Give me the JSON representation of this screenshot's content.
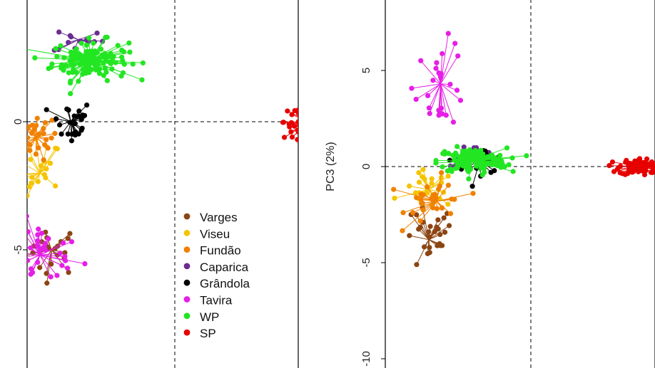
{
  "chart_data": [
    {
      "type": "scatter",
      "title": "",
      "xlabel": "",
      "ylabel": "",
      "yticks": [
        0,
        -5
      ],
      "ytick_labels": [
        "0",
        "-5"
      ],
      "legend_position": "bottom-right",
      "grid": false,
      "reference_lines": {
        "x": 0,
        "y": 0
      },
      "groups": [
        {
          "name": "Varges",
          "color": "#8B4513",
          "centroid": [
            -3.2,
            -5.0
          ]
        },
        {
          "name": "Viseu",
          "color": "#F5C400",
          "centroid": [
            -3.5,
            -2.0
          ]
        },
        {
          "name": "Fundão",
          "color": "#F08000",
          "centroid": [
            -3.6,
            -0.6
          ]
        },
        {
          "name": "Caparica",
          "color": "#6B2C91",
          "centroid": [
            -2.5,
            3.2
          ]
        },
        {
          "name": "Grândola",
          "color": "#000000",
          "centroid": [
            -2.7,
            0.0
          ]
        },
        {
          "name": "Tavira",
          "color": "#E61EE6",
          "centroid": [
            -3.5,
            -5.2
          ]
        },
        {
          "name": "WP",
          "color": "#22E622",
          "centroid": [
            -2.2,
            2.4
          ]
        },
        {
          "name": "SP",
          "color": "#E60000",
          "centroid": [
            3.5,
            0.0
          ]
        }
      ]
    },
    {
      "type": "scatter",
      "title": "",
      "xlabel": "",
      "ylabel": "PC3 (2%)",
      "yticks": [
        5,
        0,
        -5,
        -10
      ],
      "ytick_labels": [
        "5",
        "0",
        "-5",
        "-10"
      ],
      "grid": false,
      "reference_lines": {
        "x": 0,
        "y": 0
      },
      "groups": [
        {
          "name": "Varges",
          "color": "#8B4513",
          "centroid": [
            -2.6,
            -3.8
          ]
        },
        {
          "name": "Viseu",
          "color": "#F5C400",
          "centroid": [
            -2.6,
            -1.2
          ]
        },
        {
          "name": "Fundão",
          "color": "#F08000",
          "centroid": [
            -2.4,
            -1.8
          ]
        },
        {
          "name": "Caparica",
          "color": "#6B2C91",
          "centroid": [
            -1.5,
            0.6
          ]
        },
        {
          "name": "Grândola",
          "color": "#000000",
          "centroid": [
            -1.3,
            0.3
          ]
        },
        {
          "name": "Tavira",
          "color": "#E61EE6",
          "centroid": [
            -2.3,
            4.3
          ]
        },
        {
          "name": "WP",
          "color": "#22E622",
          "centroid": [
            -1.5,
            0.3
          ]
        },
        {
          "name": "SP",
          "color": "#E60000",
          "centroid": [
            2.8,
            0.0
          ]
        }
      ]
    }
  ]
}
